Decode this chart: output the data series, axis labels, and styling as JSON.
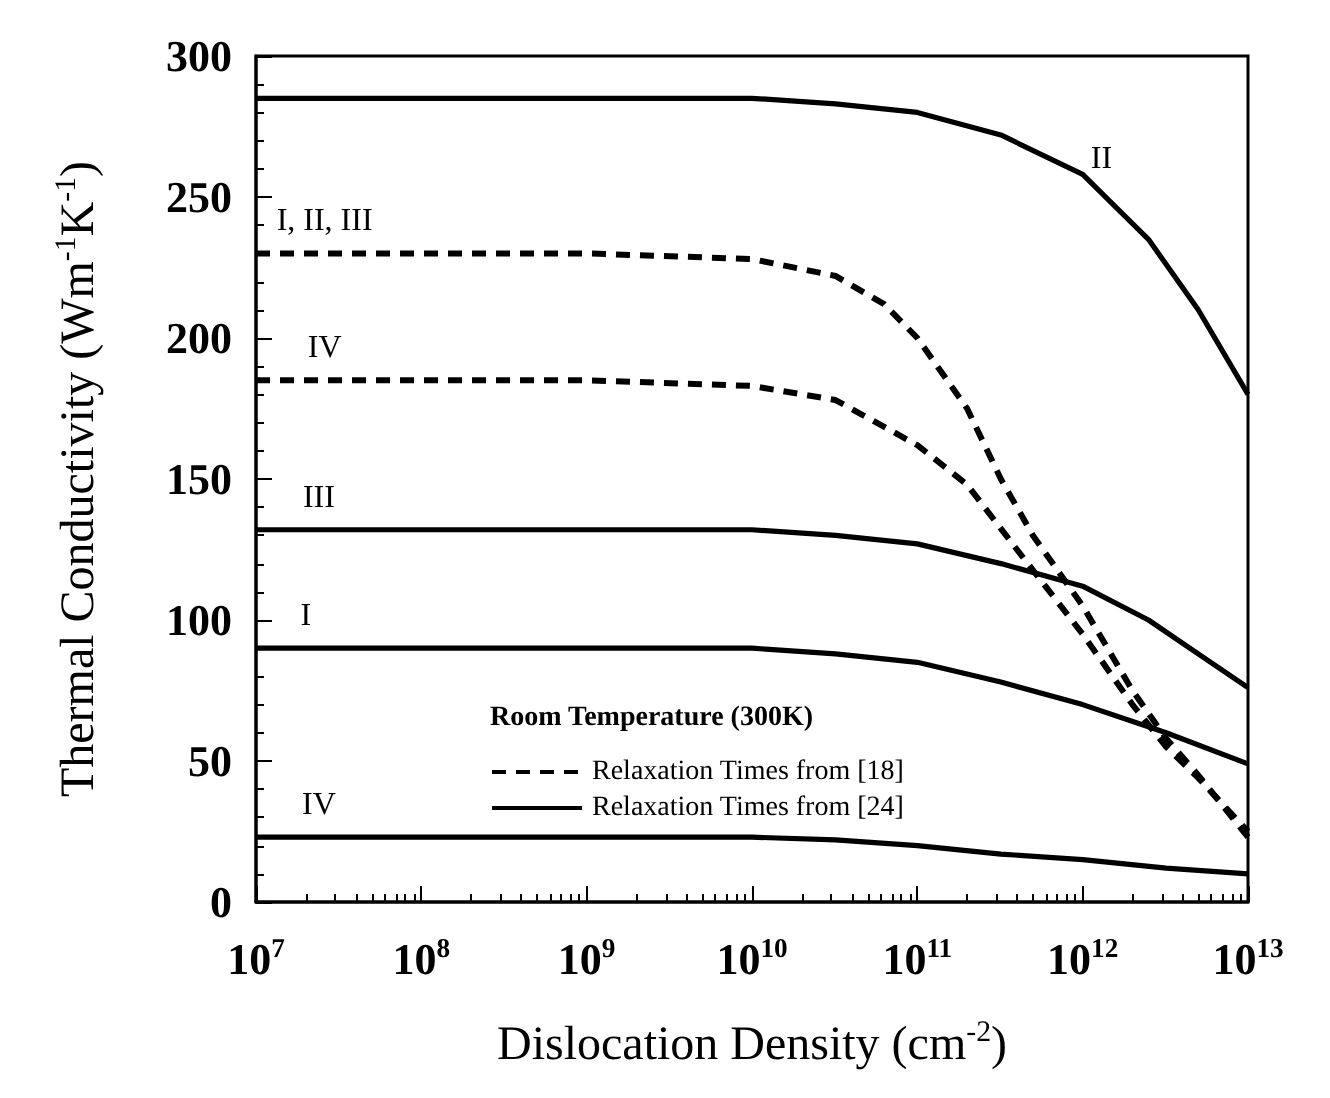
{
  "chart_data": {
    "type": "line",
    "xlabel": "Dislocation Density (cm$^{-2}$)",
    "ylabel": "Thermal Conductivity (Wm$^{-1}$K$^{-1}$)",
    "legend_title": "Room Temperature (300K)",
    "log": "x",
    "legend": "bottom",
    "marker": "none",
    "xlim": [
      10000000.0,
      10000000000000.0
    ],
    "xticks": [
      {
        "value": 10000000.0,
        "label": "10$^{7}$"
      },
      {
        "value": 100000000.0,
        "label": "10$^{8}$"
      },
      {
        "value": 1000000000.0,
        "label": "10$^{9}$"
      },
      {
        "value": 10000000000.0,
        "label": "10$^{10}$"
      },
      {
        "value": 100000000000.0,
        "label": "10$^{11}$"
      },
      {
        "value": 1000000000000.0,
        "label": "10$^{12}$"
      },
      {
        "value": 10000000000000.0,
        "label": "10$^{13}$"
      }
    ],
    "ylim": [
      0,
      300
    ],
    "yticks": [
      0,
      50,
      100,
      150,
      200,
      250,
      300
    ],
    "series": [
      {
        "name": "Relaxation Times from [18]",
        "color": "#000000",
        "line_style": "dashed",
        "x": [
          10000000.0,
          1000000000.0,
          10000000000.0,
          32000000000.0,
          63000000000.0,
          100000000000.0,
          200000000000.0,
          320000000000.0,
          500000000000.0,
          1000000000000.0,
          2000000000000.0,
          3200000000000.0,
          5000000000000.0,
          10000000000000.0
        ],
        "values": [
          230,
          230,
          228,
          222,
          212,
          200,
          175,
          150,
          130,
          105,
          75,
          58,
          45,
          23
        ]
      },
      {
        "color": "#000000",
        "line_style": "dashed",
        "x": [
          10000000.0,
          1000000000.0,
          10000000000.0,
          32000000000.0,
          100000000000.0,
          200000000000.0,
          400000000000.0,
          1000000000000.0,
          2000000000000.0,
          3200000000000.0,
          5000000000000.0,
          10000000000000.0
        ],
        "values": [
          185,
          185,
          183,
          178,
          162,
          148,
          125,
          95,
          70,
          55,
          44,
          25
        ]
      },
      {
        "name": "Relaxation Times from [24]",
        "color": "#000000",
        "line_style": "solid",
        "x": [
          10000000.0,
          10000000000.0,
          32000000000.0,
          100000000000.0,
          320000000000.0,
          1000000000000.0,
          2500000000000.0,
          5000000000000.0,
          10000000000000.0
        ],
        "values": [
          285,
          285,
          283,
          280,
          272,
          258,
          235,
          210,
          180
        ]
      },
      {
        "color": "#000000",
        "line_style": "solid",
        "x": [
          10000000.0,
          10000000000.0,
          32000000000.0,
          100000000000.0,
          320000000000.0,
          1000000000000.0,
          2500000000000.0,
          5000000000000.0,
          10000000000000.0
        ],
        "values": [
          132,
          132,
          130,
          127,
          120,
          112,
          100,
          88,
          76
        ]
      },
      {
        "color": "#000000",
        "line_style": "solid",
        "x": [
          10000000.0,
          10000000000.0,
          32000000000.0,
          100000000000.0,
          320000000000.0,
          1000000000000.0,
          3200000000000.0,
          10000000000000.0
        ],
        "values": [
          90,
          90,
          88,
          85,
          78,
          70,
          60,
          49
        ]
      },
      {
        "color": "#000000",
        "line_style": "solid",
        "x": [
          10000000.0,
          10000000000.0,
          32000000000.0,
          100000000000.0,
          320000000000.0,
          1000000000000.0,
          3200000000000.0,
          10000000000000.0
        ],
        "values": [
          23,
          23,
          22,
          20,
          17,
          15,
          12,
          10
        ]
      }
    ],
    "annotations": [
      {
        "text": "II",
        "x": 1300000000000.0,
        "y": 252
      },
      {
        "text": "I, II, III",
        "x": 26000000.0,
        "y": 230
      },
      {
        "text": "IV",
        "x": 26000000.0,
        "y": 185
      },
      {
        "text": "III",
        "x": 24000000.0,
        "y": 132
      },
      {
        "text": "I",
        "x": 20000000.0,
        "y": 90
      },
      {
        "text": "IV",
        "x": 24000000.0,
        "y": 23
      }
    ]
  }
}
